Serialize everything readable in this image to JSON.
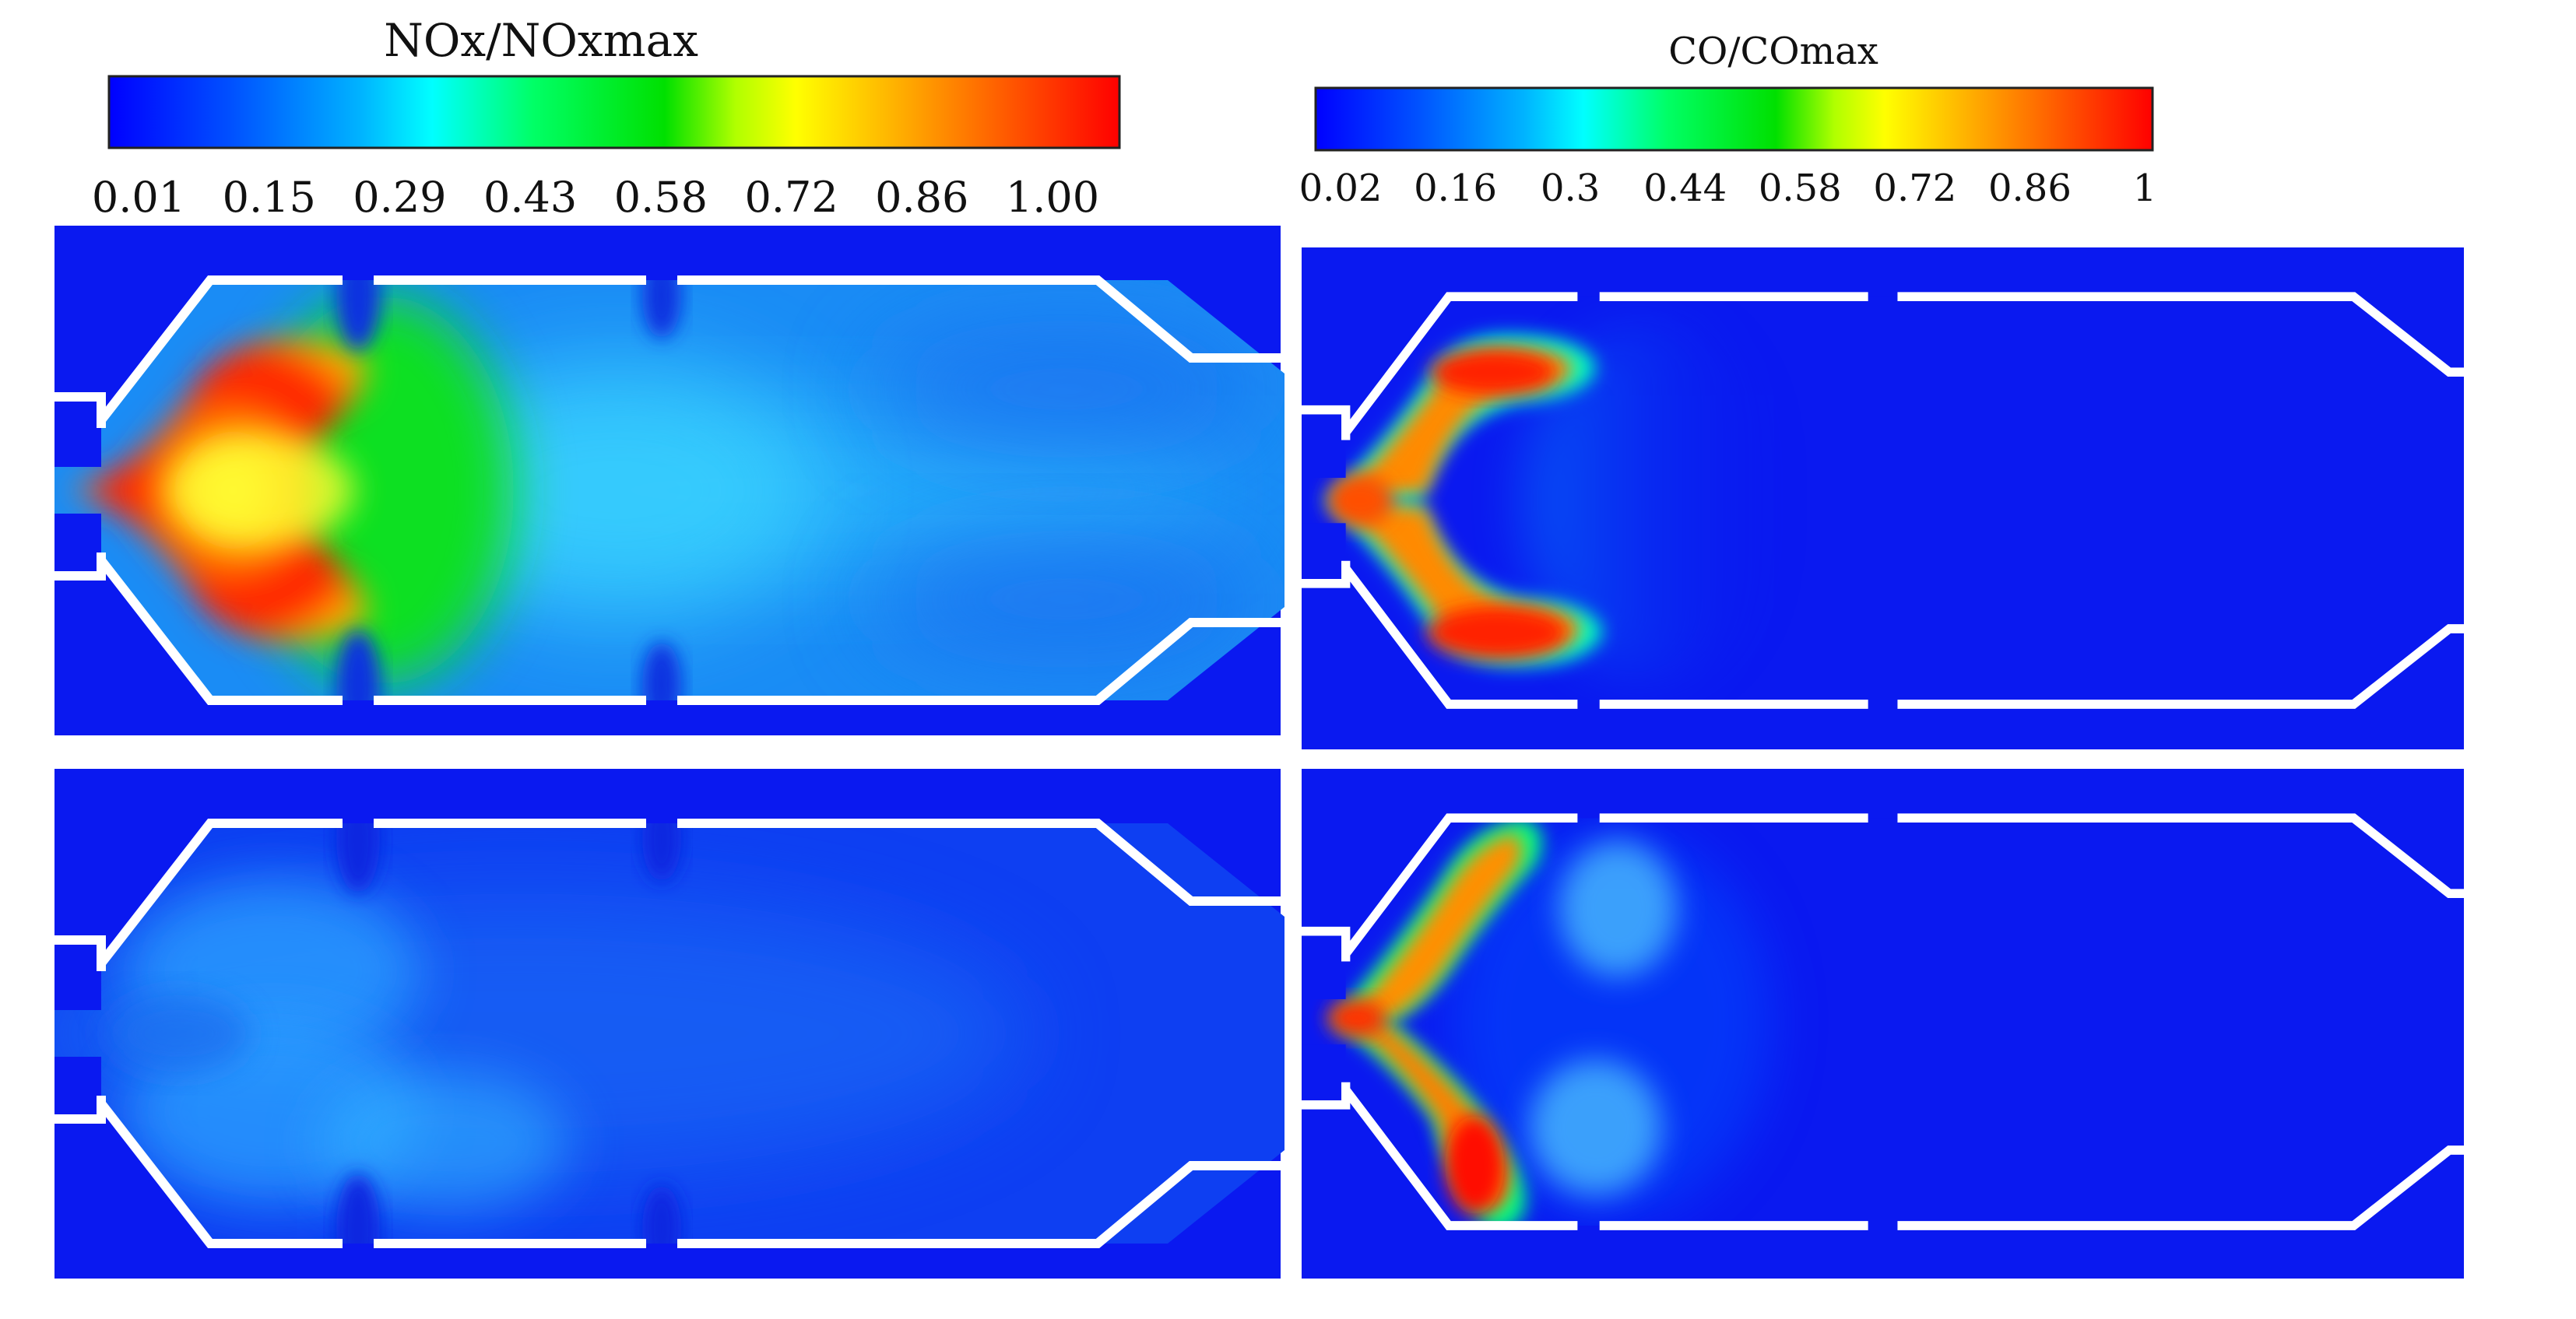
{
  "legends": [
    {
      "id": "nox",
      "title": "NOx/NOxmax",
      "ticks": [
        "0.01",
        "0.15",
        "0.29",
        "0.43",
        "0.58",
        "0.72",
        "0.86",
        "1.00"
      ]
    },
    {
      "id": "co",
      "title": "CO/COmax",
      "ticks": [
        "0.02",
        "0.16",
        "0.3",
        "0.44",
        "0.58",
        "0.72",
        "0.86",
        "1"
      ]
    }
  ],
  "colormap": [
    "#0000ff",
    "#0055ff",
    "#00aaff",
    "#00ffff",
    "#00ff55",
    "#00ee00",
    "#aaff00",
    "#ffff00",
    "#ffaa00",
    "#ff5500",
    "#ff0000"
  ],
  "field_colors": {
    "background": "#0a19f0",
    "wall": "#ffffff",
    "nox_top_bulk": "#1a8cf5",
    "nox_bottom_bulk": "#0e3ff2"
  },
  "panels": [
    {
      "id": "nox-top",
      "variable": "NOx/NOxmax",
      "position": "top-left"
    },
    {
      "id": "nox-bottom",
      "variable": "NOx/NOxmax",
      "position": "bottom-left"
    },
    {
      "id": "co-top",
      "variable": "CO/COmax",
      "position": "top-right"
    },
    {
      "id": "co-bottom",
      "variable": "CO/COmax",
      "position": "bottom-right"
    }
  ]
}
